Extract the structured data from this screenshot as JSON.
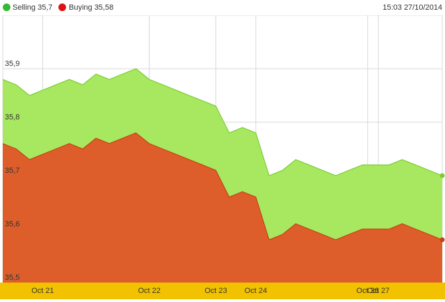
{
  "legend": {
    "selling_label": "Selling 35,7",
    "buying_label": "Buying 35,58"
  },
  "timestamp": "15:03 27/10/2014",
  "colors": {
    "selling_area": "#a8e860",
    "selling_line": "#7ccd33",
    "buying_area": "#dd5e2a",
    "buying_line": "#c44415",
    "selling_dot": "#33bb33",
    "buying_dot": "#dd1111",
    "axis_band": "#f2c200",
    "grid": "#d8d8d8"
  },
  "chart_data": {
    "type": "area",
    "ylim": [
      35.5,
      36.0
    ],
    "y_ticks": [
      "35,5",
      "35,6",
      "35,7",
      "35,8",
      "35,9"
    ],
    "y_tick_values": [
      35.5,
      35.6,
      35.7,
      35.8,
      35.9
    ],
    "x_tick_labels": [
      "Oct 21",
      "Oct 22",
      "Oct 23",
      "Oct 24",
      "Oct 26",
      "Oct 27"
    ],
    "x_tick_positions": [
      3,
      11,
      16,
      19,
      27.4,
      28.2
    ],
    "x": [
      0,
      1,
      2,
      3,
      4,
      5,
      6,
      7,
      8,
      9,
      10,
      11,
      12,
      13,
      14,
      15,
      16,
      17,
      18,
      19,
      20,
      21,
      22,
      23,
      24,
      25,
      26,
      27,
      28,
      29,
      30,
      31,
      32,
      33
    ],
    "series": [
      {
        "name": "Selling",
        "values": [
          35.88,
          35.87,
          35.85,
          35.86,
          35.87,
          35.88,
          35.87,
          35.89,
          35.88,
          35.89,
          35.9,
          35.88,
          35.87,
          35.86,
          35.85,
          35.84,
          35.83,
          35.78,
          35.79,
          35.78,
          35.7,
          35.71,
          35.73,
          35.72,
          35.71,
          35.7,
          35.71,
          35.72,
          35.72,
          35.72,
          35.73,
          35.72,
          35.71,
          35.7
        ]
      },
      {
        "name": "Buying",
        "values": [
          35.76,
          35.75,
          35.73,
          35.74,
          35.75,
          35.76,
          35.75,
          35.77,
          35.76,
          35.77,
          35.78,
          35.76,
          35.75,
          35.74,
          35.73,
          35.72,
          35.71,
          35.66,
          35.67,
          35.66,
          35.58,
          35.59,
          35.61,
          35.6,
          35.59,
          35.58,
          35.59,
          35.6,
          35.6,
          35.6,
          35.61,
          35.6,
          35.59,
          35.58
        ]
      }
    ]
  }
}
